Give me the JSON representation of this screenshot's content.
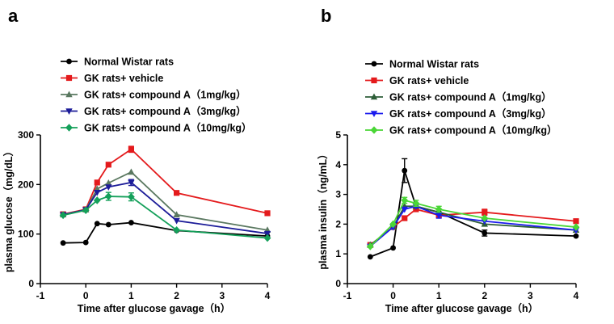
{
  "figure": {
    "panels": [
      "a",
      "b"
    ]
  },
  "chart_data": [
    {
      "panel": "a",
      "type": "line",
      "xlabel": "Time after glucose gavage（h）",
      "ylabel": "plasma glucose（mg/dL）",
      "xlim": [
        -1,
        4
      ],
      "ylim": [
        0,
        300
      ],
      "xticks": [
        -1,
        0,
        1,
        2,
        3,
        4
      ],
      "yticks": [
        0,
        100,
        200,
        300
      ],
      "x": [
        -0.5,
        0,
        0.25,
        0.5,
        1,
        2,
        4
      ],
      "grid": false,
      "legend_position": "top-left",
      "series": [
        {
          "name": "Normal Wistar rats",
          "color": "#000000",
          "marker": "circle",
          "values": [
            82,
            83,
            121,
            119,
            123,
            107,
            96
          ],
          "errors": [
            0,
            0,
            0,
            0,
            0,
            0,
            0
          ]
        },
        {
          "name": "GK rats+ vehicle",
          "color": "#e41a1c",
          "marker": "square",
          "values": [
            140,
            150,
            204,
            240,
            271,
            183,
            142
          ],
          "errors": [
            0,
            0,
            0,
            0,
            6,
            0,
            0
          ]
        },
        {
          "name": "GK rats+ compound A（1mg/kg）",
          "color": "#5a7860",
          "marker": "triangle-up",
          "values": [
            139,
            149,
            191,
            203,
            225,
            139,
            108
          ],
          "errors": [
            0,
            0,
            0,
            0,
            0,
            0,
            0
          ]
        },
        {
          "name": "GK rats+ compound A（3mg/kg）",
          "color": "#1c1c99",
          "marker": "triangle-down",
          "values": [
            139,
            149,
            184,
            195,
            204,
            127,
            101
          ],
          "errors": [
            0,
            0,
            0,
            0,
            6,
            0,
            0
          ]
        },
        {
          "name": "GK rats+ compound A（10mg/kg）",
          "color": "#14a05a",
          "marker": "diamond",
          "values": [
            138,
            148,
            168,
            176,
            175,
            108,
            92
          ],
          "errors": [
            0,
            0,
            0,
            8,
            8,
            0,
            0
          ]
        }
      ]
    },
    {
      "panel": "b",
      "type": "line",
      "xlabel": "Time after glucose gavage（h）",
      "ylabel": "plasma insulin（ng/mL）",
      "xlim": [
        -1,
        4
      ],
      "ylim": [
        0,
        5
      ],
      "xticks": [
        -1,
        0,
        1,
        2,
        3,
        4
      ],
      "yticks": [
        0,
        1,
        2,
        3,
        4,
        5
      ],
      "x": [
        -0.5,
        0,
        0.25,
        0.5,
        1,
        2,
        4
      ],
      "grid": false,
      "legend_position": "top-left",
      "series": [
        {
          "name": "Normal Wistar rats",
          "color": "#000000",
          "marker": "circle",
          "values": [
            0.9,
            1.2,
            3.8,
            2.6,
            2.4,
            1.7,
            1.6
          ],
          "errors": [
            0,
            0,
            0.4,
            0,
            0,
            0.1,
            0
          ]
        },
        {
          "name": "GK rats+ vehicle",
          "color": "#e41a1c",
          "marker": "square",
          "values": [
            1.3,
            1.9,
            2.2,
            2.5,
            2.3,
            2.4,
            2.1
          ],
          "errors": [
            0,
            0,
            0,
            0,
            0,
            0.1,
            0
          ]
        },
        {
          "name": "GK rats+ compound A（1mg/kg）",
          "color": "#2e5e38",
          "marker": "triangle-up",
          "values": [
            1.3,
            1.9,
            2.6,
            2.6,
            2.4,
            2.0,
            1.8
          ],
          "errors": [
            0,
            0,
            0,
            0,
            0,
            0,
            0
          ]
        },
        {
          "name": "GK rats+ compound A（3mg/kg）",
          "color": "#1a1aee",
          "marker": "triangle-down",
          "values": [
            1.25,
            1.9,
            2.5,
            2.6,
            2.3,
            2.1,
            1.8
          ],
          "errors": [
            0,
            0,
            0,
            0,
            0.1,
            0,
            0
          ]
        },
        {
          "name": "GK rats+ compound A（10mg/kg）",
          "color": "#4ad636",
          "marker": "diamond",
          "values": [
            1.25,
            2.0,
            2.8,
            2.7,
            2.5,
            2.2,
            1.9
          ],
          "errors": [
            0,
            0,
            0.1,
            0.1,
            0.1,
            0,
            0
          ]
        }
      ]
    }
  ]
}
